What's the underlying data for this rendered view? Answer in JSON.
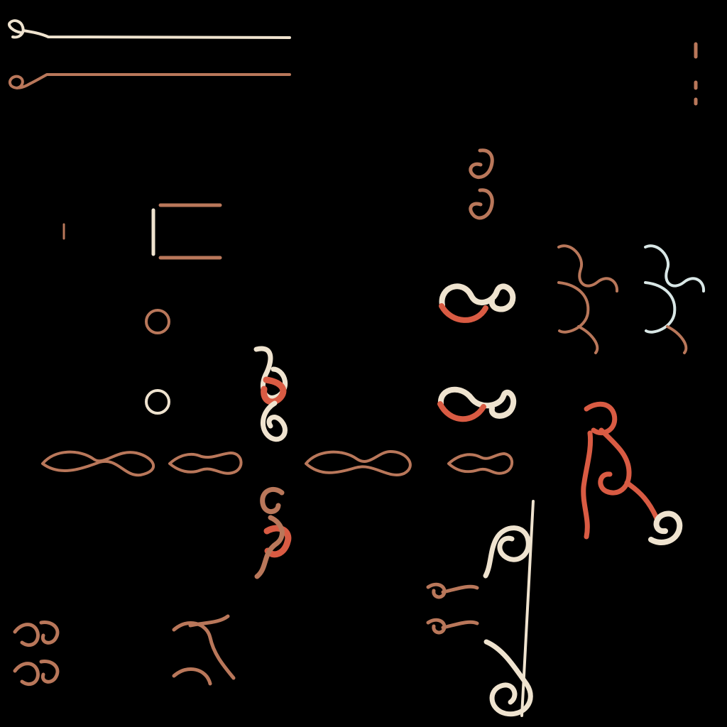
{
  "palette": {
    "background": "#000000",
    "gold": "#c8a37a",
    "cream": "#efe3cf",
    "rust": "#d95b43",
    "copper": "#b9775a",
    "pale": "#d9e7e6"
  },
  "sprites": [
    {
      "name": "scroll-bar-cream"
    },
    {
      "name": "scroll-bar-copper"
    },
    {
      "name": "border-corner-bracket"
    },
    {
      "name": "ring-ornament"
    },
    {
      "name": "eye-flourish"
    },
    {
      "name": "vine-border-strip"
    },
    {
      "name": "swirl-corner"
    },
    {
      "name": "wave-flourish"
    },
    {
      "name": "spiral-cluster"
    },
    {
      "name": "scroll-stand"
    }
  ]
}
